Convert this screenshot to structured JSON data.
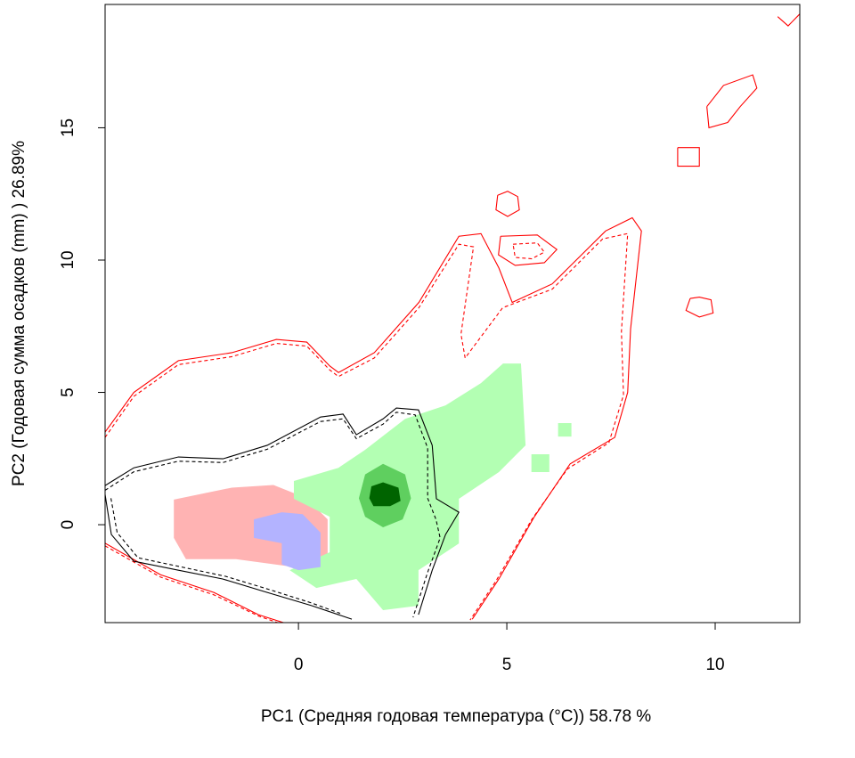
{
  "chart_data": {
    "type": "contour",
    "x_label": "PC1 (Средняя годовая температура (°C)) 58.78 %",
    "y_label": "PC2 (Годовая сумма осадков  (mm) ) 26.89%",
    "xlim": [
      -4.64,
      12.03
    ],
    "ylim": [
      -3.7,
      19.66
    ],
    "xticks": [
      0,
      5,
      10
    ],
    "yticks": [
      0,
      5,
      10,
      15
    ],
    "areas": [
      {
        "color": "#ffb3b3",
        "x": [
          -2.99,
          -1.6,
          -0.6,
          0.2,
          0.7,
          0.7,
          -0.1,
          -1.5,
          -2.7,
          -2.99
        ],
        "y": [
          0.95,
          1.4,
          1.5,
          1.0,
          0.2,
          -1.6,
          -1.6,
          -1.3,
          -1.3,
          -0.5
        ]
      },
      {
        "color": "#b3ffb3",
        "x": [
          -0.11,
          0.96,
          1.6,
          2.56,
          3.53,
          4.38,
          4.91,
          5.34,
          5.45,
          4.81,
          3.85,
          3.85,
          2.88,
          2.88,
          2.03,
          1.39,
          0.43,
          -0.21,
          0.75,
          0.75,
          -0.11
        ],
        "y": [
          1.65,
          2.15,
          2.83,
          4.0,
          4.51,
          5.35,
          6.09,
          6.09,
          3.0,
          1.99,
          0.98,
          -0.71,
          -1.72,
          -3.06,
          -3.23,
          -2.05,
          -2.39,
          -1.72,
          -1.04,
          0.3,
          0.98
        ]
      },
      {
        "color": "#b3ffb3",
        "x": [
          5.59,
          6.02,
          6.02,
          5.59
        ],
        "y": [
          2.66,
          2.66,
          1.99,
          1.99
        ]
      },
      {
        "color": "#b3ffb3",
        "x": [
          6.23,
          6.55,
          6.55,
          6.23
        ],
        "y": [
          3.84,
          3.84,
          3.33,
          3.33
        ]
      },
      {
        "color": "#b3b3ff",
        "x": [
          -1.07,
          -0.4,
          0.1,
          0.53,
          0.53,
          0.0,
          -0.4,
          -0.4,
          -1.07
        ],
        "y": [
          0.2,
          0.47,
          0.4,
          -0.3,
          -1.6,
          -1.72,
          -1.5,
          -0.7,
          -0.5
        ]
      },
      {
        "color": "#5fcf5f",
        "x": [
          1.6,
          2.03,
          2.56,
          2.7,
          2.5,
          2.03,
          1.6,
          1.45
        ],
        "y": [
          1.9,
          2.3,
          1.9,
          1.0,
          0.2,
          -0.1,
          0.3,
          1.0
        ]
      },
      {
        "color": "#006400",
        "x": [
          1.75,
          2.03,
          2.4,
          2.45,
          2.2,
          1.8,
          1.7
        ],
        "y": [
          1.45,
          1.6,
          1.4,
          0.9,
          0.7,
          0.7,
          1.0
        ]
      }
    ],
    "series": [
      {
        "color": "#ff0000",
        "dash": false,
        "x": [
          -4.64,
          -3.95,
          -2.88,
          -1.6,
          -0.53,
          0.2,
          0.75,
          0.96,
          1.82,
          2.89,
          3.85,
          4.38,
          4.81,
          5.13,
          6.09,
          7.37,
          8.01,
          8.23,
          7.97,
          7.9,
          7.59,
          6.52,
          5.66,
          4.81,
          4.17
        ],
        "y": [
          3.5,
          5.0,
          6.2,
          6.5,
          7.0,
          6.9,
          6.0,
          5.75,
          6.5,
          8.4,
          10.9,
          11.0,
          9.7,
          8.4,
          9.1,
          11.1,
          11.6,
          11.1,
          7.4,
          5.0,
          3.3,
          2.3,
          0.3,
          -2.05,
          -3.57
        ]
      },
      {
        "color": "#ff0000",
        "dash": true,
        "x": [
          -4.64,
          -3.95,
          -2.88,
          -1.6,
          -0.53,
          0.2,
          0.75,
          0.96,
          1.82,
          2.89,
          3.85,
          4.2,
          3.9,
          4.0,
          4.9,
          6.09,
          7.3,
          7.9,
          7.75,
          7.8,
          7.45,
          6.45,
          5.6,
          4.75,
          4.12
        ],
        "y": [
          3.3,
          4.85,
          6.05,
          6.35,
          6.85,
          6.75,
          5.85,
          5.6,
          6.3,
          8.2,
          10.6,
          10.5,
          7.2,
          6.3,
          8.2,
          8.9,
          10.8,
          11.0,
          7.3,
          4.9,
          3.1,
          2.1,
          0.2,
          -2.1,
          -3.6
        ]
      },
      {
        "color": "#ff0000",
        "dash": false,
        "x": [
          -4.64,
          -3.31,
          -2.03,
          -0.96,
          -0.36
        ],
        "y": [
          -0.7,
          -1.89,
          -2.56,
          -3.4,
          -3.7
        ]
      },
      {
        "color": "#ff0000",
        "dash": true,
        "x": [
          -4.64,
          -3.31,
          -2.03,
          -0.96,
          -0.5
        ],
        "y": [
          -0.8,
          -1.98,
          -2.65,
          -3.45,
          -3.7
        ]
      },
      {
        "color": "#ff0000",
        "dash": false,
        "x": [
          4.78,
          5.02,
          5.26,
          5.3,
          5.02,
          4.74,
          4.78
        ],
        "y": [
          12.45,
          12.6,
          12.4,
          11.9,
          11.65,
          11.9,
          12.45
        ]
      },
      {
        "color": "#ff0000",
        "dash": false,
        "x": [
          9.4,
          9.62,
          9.9,
          9.95,
          9.62,
          9.3,
          9.4
        ],
        "y": [
          8.55,
          8.6,
          8.5,
          8.0,
          7.85,
          8.1,
          8.55
        ]
      },
      {
        "color": "#ff0000",
        "dash": false,
        "x": [
          9.1,
          9.62,
          9.62,
          9.1,
          9.1
        ],
        "y": [
          14.25,
          14.25,
          13.55,
          13.55,
          14.25
        ]
      },
      {
        "color": "#ff0000",
        "dash": false,
        "x": [
          4.85,
          5.73,
          6.2,
          5.9,
          5.2,
          4.8,
          4.85
        ],
        "y": [
          10.9,
          10.95,
          10.4,
          9.9,
          9.8,
          10.2,
          10.9
        ]
      },
      {
        "color": "#ff0000",
        "dash": true,
        "x": [
          5.15,
          5.73,
          5.9,
          5.6,
          5.2,
          5.15
        ],
        "y": [
          10.6,
          10.65,
          10.3,
          10.05,
          10.1,
          10.6
        ]
      },
      {
        "color": "#ff0000",
        "dash": false,
        "x": [
          9.8,
          10.2,
          10.9,
          11.0,
          10.6,
          10.3,
          9.85,
          9.8
        ],
        "y": [
          15.8,
          16.6,
          17.0,
          16.5,
          15.8,
          15.2,
          15.0,
          15.8
        ]
      },
      {
        "color": "#ff0000",
        "dash": false,
        "x": [
          11.5,
          11.75,
          12.03
        ],
        "y": [
          19.2,
          18.85,
          19.3
        ]
      },
      {
        "color": "#000000",
        "dash": false,
        "x": [
          -4.64,
          -3.95,
          -2.88,
          -1.81,
          -0.75,
          0.53,
          1.07,
          1.39,
          2.03,
          2.35,
          2.88,
          3.21,
          3.31,
          3.85,
          3.53,
          3.21,
          2.88
        ],
        "y": [
          1.48,
          2.15,
          2.56,
          2.49,
          3.0,
          4.07,
          4.18,
          3.4,
          4.0,
          4.41,
          4.34,
          3.0,
          0.98,
          0.47,
          -0.37,
          -1.72,
          -3.4
        ]
      },
      {
        "color": "#000000",
        "dash": true,
        "x": [
          -4.64,
          -3.95,
          -2.88,
          -1.81,
          -0.75,
          0.53,
          1.07,
          1.39,
          2.03,
          2.35,
          2.8,
          3.1,
          3.1,
          3.3,
          3.4,
          3.1,
          2.75
        ],
        "y": [
          1.3,
          2.0,
          2.4,
          2.35,
          2.85,
          3.9,
          4.0,
          3.25,
          3.8,
          4.25,
          4.15,
          2.9,
          1.0,
          0.2,
          -0.5,
          -1.8,
          -3.5
        ]
      },
      {
        "color": "#000000",
        "dash": false,
        "x": [
          -4.64,
          -4.49,
          -3.95,
          -2.88,
          -1.82,
          -0.75,
          0.32,
          1.28
        ],
        "y": [
          1.14,
          -0.37,
          -1.38,
          -1.72,
          -2.05,
          -2.56,
          -3.06,
          -3.57
        ]
      },
      {
        "color": "#000000",
        "dash": true,
        "x": [
          -4.5,
          -4.35,
          -3.85,
          -2.8,
          -1.75,
          -0.7,
          0.3,
          1.0
        ],
        "y": [
          1.0,
          -0.3,
          -1.25,
          -1.6,
          -1.95,
          -2.45,
          -2.95,
          -3.35
        ]
      }
    ]
  }
}
